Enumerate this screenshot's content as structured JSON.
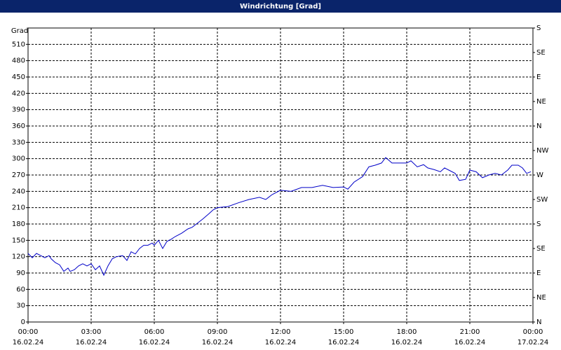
{
  "chart_data": {
    "type": "line",
    "title": "Windrichtung [Grad]",
    "ylabel": "Grad",
    "x": [
      0,
      0.2,
      0.4,
      0.6,
      0.8,
      1.0,
      1.1,
      1.3,
      1.5,
      1.7,
      1.9,
      2.0,
      2.2,
      2.4,
      2.6,
      2.8,
      3.0,
      3.2,
      3.4,
      3.6,
      3.8,
      4.0,
      4.2,
      4.5,
      4.7,
      4.9,
      5.1,
      5.3,
      5.5,
      5.7,
      5.9,
      6.0,
      6.2,
      6.4,
      6.6,
      6.8,
      7.0,
      7.3,
      7.6,
      7.8,
      8.0,
      8.3,
      8.6,
      8.8,
      9.0,
      9.5,
      10.0,
      10.5,
      11.0,
      11.3,
      11.6,
      12.0,
      12.5,
      13.0,
      13.5,
      14.0,
      14.5,
      15.0,
      15.2,
      15.5,
      15.9,
      16.2,
      16.5,
      16.8,
      17.0,
      17.3,
      17.7,
      18.0,
      18.2,
      18.5,
      18.8,
      19.0,
      19.3,
      19.6,
      19.8,
      20.0,
      20.3,
      20.5,
      20.8,
      21.0,
      21.3,
      21.6,
      21.9,
      22.2,
      22.5,
      22.8,
      23.0,
      23.3,
      23.5,
      23.7,
      23.9
    ],
    "values": [
      126,
      118,
      126,
      122,
      118,
      122,
      116,
      109,
      105,
      93,
      99,
      93,
      96,
      103,
      107,
      103,
      107,
      96,
      103,
      86,
      103,
      116,
      120,
      122,
      113,
      129,
      125,
      135,
      141,
      141,
      145,
      141,
      150,
      135,
      148,
      152,
      157,
      163,
      171,
      174,
      180,
      189,
      199,
      206,
      210,
      212,
      219,
      225,
      229,
      225,
      234,
      242,
      240,
      247,
      247,
      251,
      247,
      248,
      244,
      257,
      267,
      285,
      288,
      292,
      302,
      292,
      292,
      292,
      296,
      285,
      289,
      283,
      280,
      276,
      283,
      279,
      273,
      260,
      262,
      279,
      276,
      265,
      270,
      273,
      270,
      279,
      288,
      288,
      283,
      273,
      276
    ],
    "color": "#0000c8",
    "xlim": [
      0,
      24
    ],
    "xticks": [
      {
        "value": 0,
        "label": [
          "00:00",
          "16.02.24"
        ]
      },
      {
        "value": 3,
        "label": [
          "03:00",
          "16.02.24"
        ]
      },
      {
        "value": 6,
        "label": [
          "06:00",
          "16.02.24"
        ]
      },
      {
        "value": 9,
        "label": [
          "09:00",
          "16.02.24"
        ]
      },
      {
        "value": 12,
        "label": [
          "12:00",
          "16.02.24"
        ]
      },
      {
        "value": 15,
        "label": [
          "15:00",
          "16.02.24"
        ]
      },
      {
        "value": 18,
        "label": [
          "18:00",
          "16.02.24"
        ]
      },
      {
        "value": 21,
        "label": [
          "21:00",
          "16.02.24"
        ]
      },
      {
        "value": 24,
        "label": [
          "00:00",
          "17.02.24"
        ]
      }
    ],
    "ylim": [
      0,
      540
    ],
    "yticks": [
      0,
      30,
      60,
      90,
      120,
      150,
      180,
      210,
      240,
      270,
      300,
      330,
      360,
      390,
      420,
      450,
      480,
      510
    ],
    "y2lim": [
      0,
      540
    ],
    "y2ticks": [
      {
        "value": 0,
        "label": "N"
      },
      {
        "value": 45,
        "label": "NE"
      },
      {
        "value": 90,
        "label": "E"
      },
      {
        "value": 135,
        "label": "SE"
      },
      {
        "value": 180,
        "label": "S"
      },
      {
        "value": 225,
        "label": "SW"
      },
      {
        "value": 270,
        "label": "W"
      },
      {
        "value": 315,
        "label": "NW"
      },
      {
        "value": 360,
        "label": "N"
      },
      {
        "value": 405,
        "label": "NE"
      },
      {
        "value": 450,
        "label": "E"
      },
      {
        "value": 495,
        "label": "SE"
      },
      {
        "value": 540,
        "label": "S"
      }
    ],
    "grid": true
  }
}
